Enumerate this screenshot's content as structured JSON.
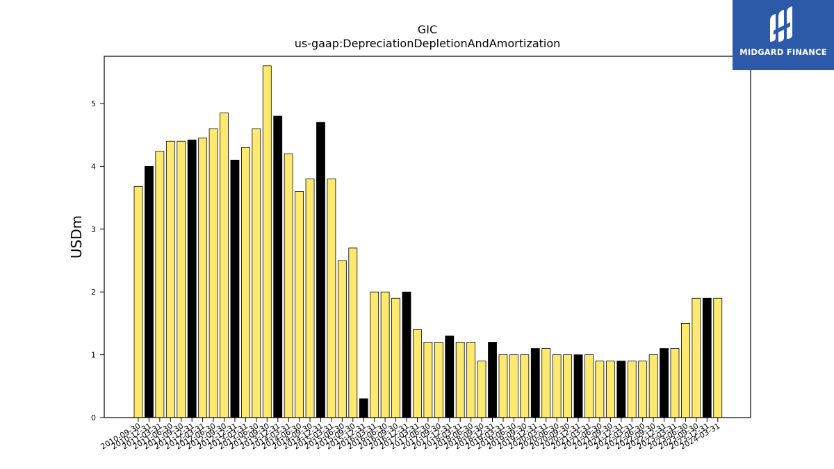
{
  "chart_data": {
    "type": "bar",
    "title": "GIC",
    "subtitle": "us-gaap:DepreciationDepletionAndAmortization",
    "ylabel": "USDm",
    "xlabel": "",
    "ylim": [
      0,
      5.75
    ],
    "yticks": [
      "0",
      "1",
      "2",
      "3",
      "4",
      "5"
    ],
    "grid": false,
    "categories": [
      "2010-09-30",
      "2010-12-31",
      "2011-03-31",
      "2011-06-30",
      "2011-09-30",
      "2011-12-31",
      "2012-03-31",
      "2012-06-30",
      "2012-09-30",
      "2012-12-31",
      "2013-03-31",
      "2013-06-30",
      "2013-09-30",
      "2013-12-31",
      "2014-03-31",
      "2014-06-30",
      "2014-09-30",
      "2014-12-31",
      "2015-03-31",
      "2015-06-30",
      "2015-09-30",
      "2015-12-31",
      "2016-03-31",
      "2016-06-30",
      "2016-09-30",
      "2016-12-31",
      "2017-03-31",
      "2017-06-30",
      "2017-09-30",
      "2017-12-31",
      "2018-03-31",
      "2018-06-30",
      "2018-09-30",
      "2018-12-31",
      "2019-03-31",
      "2019-06-30",
      "2019-09-30",
      "2019-12-31",
      "2020-03-31",
      "2020-06-30",
      "2020-09-30",
      "2020-12-31",
      "2021-03-31",
      "2021-06-30",
      "2021-09-30",
      "2021-12-31",
      "2022-03-31",
      "2022-06-30",
      "2022-09-30",
      "2022-12-31",
      "2023-03-31",
      "2023-06-30",
      "2023-09-30",
      "2023-12-31",
      "2024-03-31"
    ],
    "values": [
      3.68,
      4.0,
      4.24,
      4.4,
      4.4,
      4.42,
      4.45,
      4.6,
      4.85,
      4.1,
      4.3,
      4.6,
      5.6,
      4.8,
      4.2,
      3.6,
      3.8,
      4.7,
      3.8,
      2.5,
      2.7,
      0.3,
      2.0,
      2.0,
      1.9,
      2.0,
      1.4,
      1.2,
      1.2,
      1.3,
      1.2,
      1.2,
      0.9,
      1.2,
      1.0,
      1.0,
      1.0,
      1.1,
      1.1,
      1.0,
      1.0,
      1.0,
      1.0,
      0.9,
      0.9,
      0.9,
      0.9,
      0.9,
      1.0,
      1.1,
      1.1,
      1.5,
      1.9,
      1.9,
      1.9
    ],
    "highlight": [
      1,
      5,
      9,
      13,
      17,
      21,
      25,
      29,
      33,
      37,
      41,
      45,
      49,
      53
    ],
    "colors": {
      "bar": "#fde96f",
      "highlight": "#000000",
      "edge": "#000000"
    }
  },
  "logo": {
    "text": "MIDGARD FINANCE",
    "background": "#2c5aa8"
  }
}
